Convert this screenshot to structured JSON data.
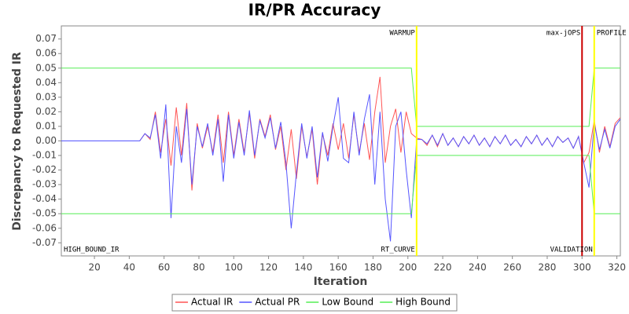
{
  "chart_data": {
    "type": "line",
    "title": "IR/PR Accuracy",
    "xlabel": "Iteration",
    "ylabel": "Discrepancy to Requested IR",
    "xlim": [
      1,
      322
    ],
    "xticks": [
      20,
      40,
      60,
      80,
      100,
      120,
      140,
      160,
      180,
      200,
      220,
      240,
      260,
      280,
      300,
      320
    ],
    "ylim": [
      -0.079,
      0.079
    ],
    "yticks": [
      -0.07,
      -0.06,
      -0.05,
      -0.04,
      -0.03,
      -0.02,
      -0.01,
      {
        "value": 0,
        "label": "0.00"
      },
      0.01,
      0.02,
      0.03,
      0.04,
      0.05,
      0.06,
      0.07
    ],
    "grid": false,
    "legend": "bottom",
    "series": [
      {
        "name": "Actual IR",
        "color": "#ff5555",
        "x": [
          1,
          46,
          49,
          52,
          55,
          58,
          61,
          64,
          67,
          70,
          73,
          76,
          79,
          82,
          85,
          88,
          91,
          94,
          97,
          100,
          103,
          106,
          109,
          112,
          115,
          118,
          121,
          124,
          127,
          130,
          133,
          136,
          139,
          142,
          145,
          148,
          151,
          154,
          157,
          160,
          163,
          166,
          169,
          172,
          175,
          178,
          181,
          184,
          187,
          190,
          193,
          196,
          199,
          202,
          205,
          208,
          211,
          214,
          217,
          220,
          223,
          226,
          229,
          232,
          235,
          238,
          241,
          244,
          247,
          250,
          253,
          256,
          259,
          262,
          265,
          268,
          271,
          274,
          277,
          280,
          283,
          286,
          289,
          292,
          295,
          298,
          301,
          304,
          307,
          310,
          313,
          316,
          319,
          322
        ],
        "values": [
          0,
          0,
          0.005,
          0.001,
          0.02,
          -0.008,
          0.015,
          -0.017,
          0.023,
          -0.01,
          0.026,
          -0.034,
          0.012,
          -0.005,
          0.01,
          -0.008,
          0.018,
          -0.015,
          0.02,
          -0.01,
          0.015,
          -0.008,
          0.019,
          -0.012,
          0.015,
          0.003,
          0.018,
          -0.006,
          0.01,
          -0.02,
          0.008,
          -0.026,
          0.01,
          -0.011,
          0.008,
          -0.03,
          0.005,
          -0.01,
          0.012,
          -0.006,
          0.012,
          -0.012,
          0.018,
          -0.008,
          0.012,
          -0.013,
          0.02,
          0.044,
          -0.015,
          0.01,
          0.022,
          -0.008,
          0.02,
          0.005,
          0.002,
          0.001,
          -0.003,
          0.004,
          -0.004,
          0.005,
          -0.003,
          0.002,
          -0.004,
          0.003,
          -0.002,
          0.004,
          -0.003,
          0.002,
          -0.004,
          0.003,
          -0.002,
          0.004,
          -0.003,
          0.001,
          -0.004,
          0.003,
          -0.002,
          0.004,
          -0.003,
          0.002,
          -0.004,
          0.003,
          -0.001,
          0.002,
          -0.005,
          0.003,
          -0.015,
          -0.008,
          0.014,
          -0.008,
          0.01,
          -0.004,
          0.012,
          0.016
        ]
      },
      {
        "name": "Actual PR",
        "color": "#5555ff",
        "x": [
          1,
          46,
          49,
          52,
          55,
          58,
          61,
          64,
          67,
          70,
          73,
          76,
          79,
          82,
          85,
          88,
          91,
          94,
          97,
          100,
          103,
          106,
          109,
          112,
          115,
          118,
          121,
          124,
          127,
          130,
          133,
          136,
          139,
          142,
          145,
          148,
          151,
          154,
          157,
          160,
          163,
          166,
          169,
          172,
          175,
          178,
          181,
          184,
          187,
          190,
          193,
          196,
          199,
          202,
          205,
          208,
          211,
          214,
          217,
          220,
          223,
          226,
          229,
          232,
          235,
          238,
          241,
          244,
          247,
          250,
          253,
          256,
          259,
          262,
          265,
          268,
          271,
          274,
          277,
          280,
          283,
          286,
          289,
          292,
          295,
          298,
          301,
          304,
          307,
          310,
          313,
          316,
          319,
          322
        ],
        "values": [
          0,
          0,
          0.005,
          0.002,
          0.018,
          -0.012,
          0.025,
          -0.053,
          0.01,
          -0.015,
          0.022,
          -0.03,
          0.01,
          -0.004,
          0.012,
          -0.01,
          0.015,
          -0.028,
          0.018,
          -0.012,
          0.013,
          -0.01,
          0.021,
          -0.01,
          0.014,
          0.002,
          0.016,
          -0.005,
          0.013,
          -0.015,
          -0.06,
          -0.022,
          0.012,
          -0.012,
          0.01,
          -0.025,
          0.006,
          -0.014,
          0.01,
          0.03,
          -0.012,
          -0.015,
          0.02,
          -0.01,
          0.015,
          0.032,
          -0.03,
          0.02,
          -0.04,
          -0.069,
          0.01,
          0.02,
          -0.02,
          -0.053,
          0.001,
          0.001,
          -0.002,
          0.004,
          -0.003,
          0.005,
          -0.003,
          0.002,
          -0.004,
          0.003,
          -0.002,
          0.004,
          -0.003,
          0.002,
          -0.004,
          0.003,
          -0.002,
          0.004,
          -0.003,
          0.001,
          -0.004,
          0.003,
          -0.002,
          0.004,
          -0.003,
          0.002,
          -0.004,
          0.003,
          -0.001,
          0.002,
          -0.005,
          0.003,
          -0.015,
          -0.032,
          0.012,
          -0.006,
          0.008,
          -0.005,
          0.01,
          0.015
        ]
      },
      {
        "name": "Low Bound",
        "color": "#55ee55",
        "x": [
          1,
          202,
          205,
          304,
          307,
          322
        ],
        "values": [
          -0.05,
          -0.05,
          -0.01,
          -0.01,
          -0.05,
          -0.05
        ]
      },
      {
        "name": "High Bound",
        "color": "#55ee55",
        "x": [
          1,
          202,
          205,
          304,
          307,
          322
        ],
        "values": [
          0.05,
          0.05,
          0.01,
          0.01,
          0.05,
          0.05
        ]
      }
    ],
    "markers": [
      {
        "x": 205,
        "color": "#ffff00"
      },
      {
        "x": 300,
        "color": "#cc0000"
      },
      {
        "x": 307,
        "color": "#ffff00"
      }
    ],
    "annotations": [
      {
        "text": "HIGH_BOUND_IR",
        "x": 1,
        "position": "bottom",
        "anchor": "start"
      },
      {
        "text": "WARMUP",
        "x": 205,
        "position": "top",
        "anchor": "end"
      },
      {
        "text": "RT_CURVE",
        "x": 205,
        "position": "bottom",
        "anchor": "end"
      },
      {
        "text": "max-jOPS",
        "x": 300,
        "position": "top",
        "anchor": "end"
      },
      {
        "text": "VALIDATION",
        "x": 307,
        "position": "bottom",
        "anchor": "end"
      },
      {
        "text": "PROFILE",
        "x": 307,
        "position": "top",
        "anchor": "start"
      }
    ]
  }
}
